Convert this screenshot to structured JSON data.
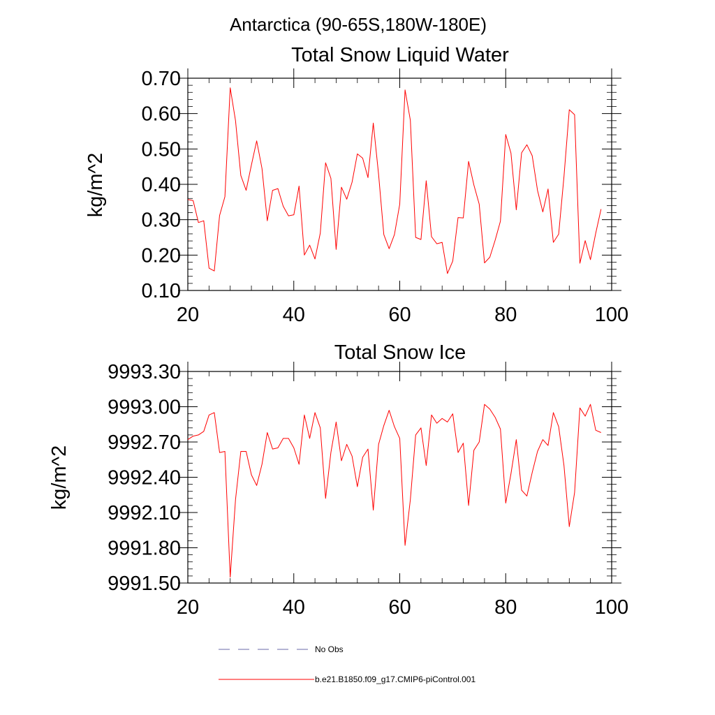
{
  "figure_title": "Antarctica (90-65S,180W-180E)",
  "colors": {
    "series": "#ff0000",
    "obs": "#6a6aa8",
    "axis": "#000000"
  },
  "legend": [
    {
      "label": "No Obs",
      "style": "dashed",
      "color": "#6a6aa8"
    },
    {
      "label": "b.e21.B1850.f09_g17.CMIP6-piControl.001",
      "style": "solid",
      "color": "#ff0000"
    }
  ],
  "chart_data": [
    {
      "type": "line",
      "title": "Total Snow Liquid Water",
      "xlabel": "",
      "ylabel": "kg/m^2",
      "xlim": [
        20,
        100
      ],
      "ylim": [
        0.1,
        0.7
      ],
      "xticks": [
        "20",
        "40",
        "60",
        "80",
        "100"
      ],
      "xtick_values": [
        20,
        40,
        60,
        80,
        100
      ],
      "yticks": [
        "0.10",
        "0.20",
        "0.30",
        "0.40",
        "0.50",
        "0.60",
        "0.70"
      ],
      "ytick_values": [
        0.1,
        0.2,
        0.3,
        0.4,
        0.5,
        0.6,
        0.7
      ],
      "series": [
        {
          "name": "b.e21.B1850.f09_g17.CMIP6-piControl.001",
          "x": [
            20,
            21,
            22,
            23,
            24,
            25,
            26,
            27,
            28,
            29,
            30,
            31,
            32,
            33,
            34,
            35,
            36,
            37,
            38,
            39,
            40,
            41,
            42,
            43,
            44,
            45,
            46,
            47,
            48,
            49,
            50,
            51,
            52,
            53,
            54,
            55,
            56,
            57,
            58,
            59,
            60,
            61,
            62,
            63,
            64,
            65,
            66,
            67,
            68,
            69,
            70,
            71,
            72,
            73,
            74,
            75,
            76,
            77,
            78,
            79,
            80,
            81,
            82,
            83,
            84,
            85,
            86,
            87,
            88,
            89,
            90,
            91,
            92,
            93,
            94,
            95,
            96,
            97,
            98
          ],
          "values": [
            0.357,
            0.354,
            0.292,
            0.297,
            0.163,
            0.155,
            0.312,
            0.365,
            0.673,
            0.58,
            0.425,
            0.383,
            0.455,
            0.523,
            0.445,
            0.297,
            0.383,
            0.388,
            0.338,
            0.311,
            0.314,
            0.395,
            0.2,
            0.228,
            0.189,
            0.262,
            0.461,
            0.417,
            0.216,
            0.392,
            0.358,
            0.406,
            0.486,
            0.474,
            0.419,
            0.573,
            0.428,
            0.258,
            0.218,
            0.258,
            0.344,
            0.667,
            0.581,
            0.25,
            0.244,
            0.41,
            0.252,
            0.232,
            0.236,
            0.148,
            0.183,
            0.306,
            0.305,
            0.465,
            0.398,
            0.344,
            0.178,
            0.194,
            0.242,
            0.296,
            0.541,
            0.488,
            0.328,
            0.489,
            0.512,
            0.481,
            0.383,
            0.322,
            0.387,
            0.236,
            0.259,
            0.422,
            0.611,
            0.597,
            0.177,
            0.241,
            0.187,
            0.262,
            0.33
          ]
        }
      ]
    },
    {
      "type": "line",
      "title": "Total Snow Ice",
      "xlabel": "",
      "ylabel": "kg/m^2",
      "xlim": [
        20,
        100
      ],
      "ylim": [
        9991.5,
        9993.3
      ],
      "xticks": [
        "20",
        "40",
        "60",
        "80",
        "100"
      ],
      "xtick_values": [
        20,
        40,
        60,
        80,
        100
      ],
      "yticks": [
        "9991.50",
        "9991.80",
        "9992.10",
        "9992.40",
        "9992.70",
        "9993.00",
        "9993.30"
      ],
      "ytick_values": [
        9991.5,
        9991.8,
        9992.1,
        9992.4,
        9992.7,
        9993.0,
        9993.3
      ],
      "series": [
        {
          "name": "b.e21.B1850.f09_g17.CMIP6-piControl.001",
          "x": [
            20,
            21,
            22,
            23,
            24,
            25,
            26,
            27,
            28,
            29,
            30,
            31,
            32,
            33,
            34,
            35,
            36,
            37,
            38,
            39,
            40,
            41,
            42,
            43,
            44,
            45,
            46,
            47,
            48,
            49,
            50,
            51,
            52,
            53,
            54,
            55,
            56,
            57,
            58,
            59,
            60,
            61,
            62,
            63,
            64,
            65,
            66,
            67,
            68,
            69,
            70,
            71,
            72,
            73,
            74,
            75,
            76,
            77,
            78,
            79,
            80,
            81,
            82,
            83,
            84,
            85,
            86,
            87,
            88,
            89,
            90,
            91,
            92,
            93,
            94,
            95,
            96,
            97,
            98
          ],
          "values": [
            9992.72,
            9992.75,
            9992.76,
            9992.79,
            9992.93,
            9992.95,
            9992.61,
            9992.62,
            9991.55,
            9992.21,
            9992.62,
            9992.62,
            9992.42,
            9992.33,
            9992.51,
            9992.78,
            9992.64,
            9992.65,
            9992.73,
            9992.73,
            9992.65,
            9992.51,
            9992.93,
            9992.73,
            9992.95,
            9992.82,
            9992.22,
            9992.61,
            9992.87,
            9992.54,
            9992.68,
            9992.58,
            9992.32,
            9992.57,
            9992.64,
            9992.12,
            9992.68,
            9992.84,
            9992.97,
            9992.83,
            9992.73,
            9991.82,
            9992.21,
            9992.76,
            9992.82,
            9992.5,
            9992.93,
            9992.86,
            9992.9,
            9992.87,
            9992.94,
            9992.61,
            9992.69,
            9992.16,
            9992.63,
            9992.7,
            9993.02,
            9992.98,
            9992.91,
            9992.81,
            9992.18,
            9992.43,
            9992.72,
            9992.29,
            9992.24,
            9992.44,
            9992.62,
            9992.72,
            9992.67,
            9992.95,
            9992.83,
            9992.5,
            9991.98,
            9992.27,
            9992.99,
            9992.92,
            9993.02,
            9992.8,
            9992.78
          ]
        }
      ]
    }
  ]
}
